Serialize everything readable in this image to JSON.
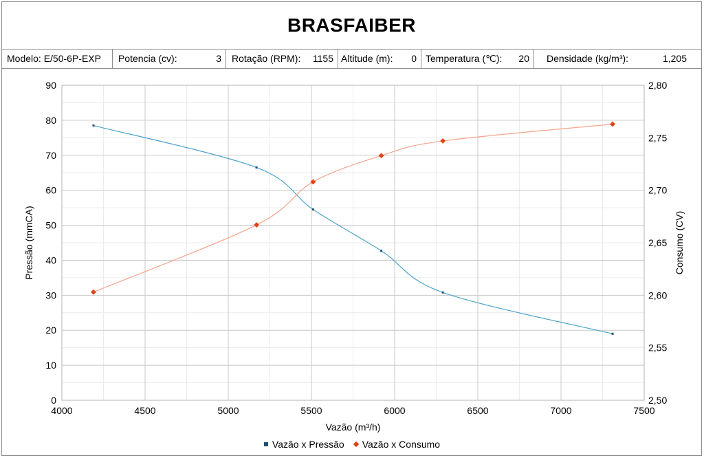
{
  "header": {
    "title": "BRASFAIBER"
  },
  "specs": {
    "modelo": {
      "label": "Modelo:",
      "value": "E/50-6P-EXP"
    },
    "potencia": {
      "label": "Potencia (cv):",
      "value": "3"
    },
    "rotacao": {
      "label": "Rotação (RPM):",
      "value": "1155"
    },
    "altitude": {
      "label": "Altitude (m):",
      "value": "0"
    },
    "temperatura": {
      "label": "Temperatura (℃):",
      "value": "20"
    },
    "densidade": {
      "label": "Densidade (kg/m³):",
      "value": "1,205"
    }
  },
  "chart_data": {
    "type": "line",
    "xlabel": "Vazão (m³/h)",
    "ylabel": "Pressão (mmCA)",
    "y2label": "Consumo (CV)",
    "xlim": [
      4000,
      7500
    ],
    "ylim": [
      0,
      90
    ],
    "y2lim": [
      2.5,
      2.8
    ],
    "x_ticks": [
      "4000",
      "4500",
      "5000",
      "5500",
      "6000",
      "6500",
      "7000",
      "7500"
    ],
    "y_ticks": [
      "0",
      "10",
      "20",
      "30",
      "40",
      "50",
      "60",
      "70",
      "80",
      "90"
    ],
    "y2_ticks": [
      "2,50",
      "2,55",
      "2,60",
      "2,65",
      "2,70",
      "2,75",
      "2,80"
    ],
    "grid": true,
    "legend_position": "bottom",
    "series": [
      {
        "name": "Vazão x Pressão",
        "axis": "left",
        "color": "#4aa3c8",
        "marker_color": "#1f4e79",
        "x": [
          4190,
          5170,
          5510,
          5920,
          6290,
          7310
        ],
        "y": [
          78.5,
          66.5,
          54.5,
          42.7,
          30.8,
          19.0
        ]
      },
      {
        "name": "Vazão x Consumo",
        "axis": "right",
        "color": "#f4a48a",
        "marker_color": "#e0431a",
        "x": [
          4190,
          5170,
          5510,
          5920,
          6290,
          7310
        ],
        "y": [
          2.603,
          2.667,
          2.708,
          2.733,
          2.747,
          2.763
        ]
      }
    ]
  }
}
